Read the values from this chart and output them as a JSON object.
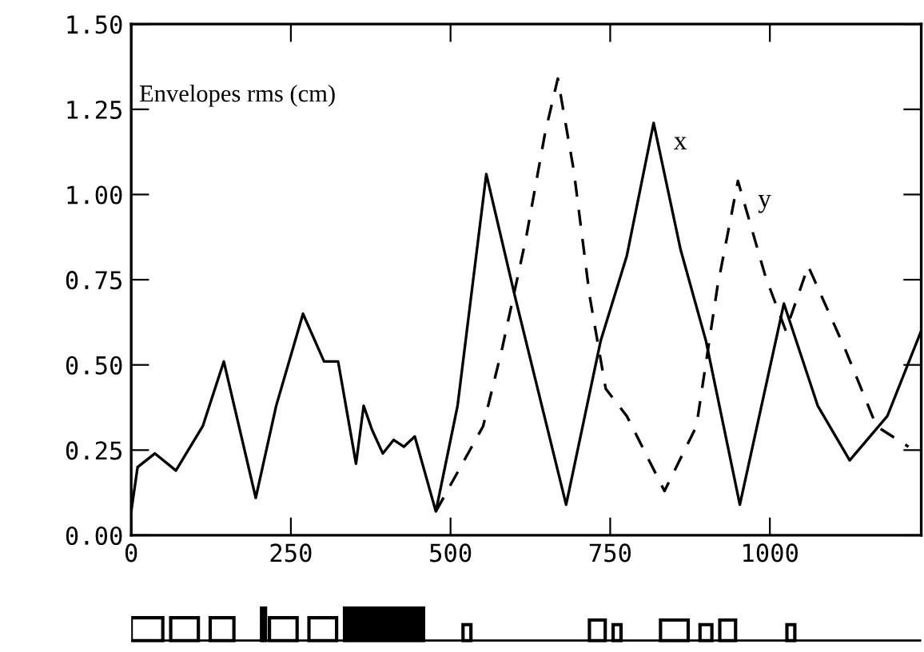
{
  "chart_data": {
    "type": "line",
    "title": "Envelopes rms (cm)",
    "series": [
      {
        "name": "x",
        "color": "#000000",
        "line_style": "solid",
        "x": [
          0,
          10,
          37,
          70,
          112,
          145,
          195,
          227,
          269,
          302,
          324,
          352,
          364,
          377,
          394,
          411,
          427,
          444,
          477,
          511,
          556,
          601,
          681,
          735,
          776,
          818,
          860,
          900,
          953,
          1022,
          1075,
          1125,
          1184,
          1237
        ],
        "values": [
          0.07,
          0.2,
          0.24,
          0.19,
          0.32,
          0.51,
          0.11,
          0.38,
          0.65,
          0.51,
          0.51,
          0.21,
          0.38,
          0.31,
          0.24,
          0.28,
          0.26,
          0.29,
          0.07,
          0.38,
          1.06,
          0.7,
          0.09,
          0.57,
          0.82,
          1.21,
          0.84,
          0.57,
          0.09,
          0.68,
          0.38,
          0.22,
          0.35,
          0.6
        ]
      },
      {
        "name": "y",
        "color": "#000000",
        "line_style": "dashed",
        "x": [
          477,
          551,
          581,
          618,
          648,
          668,
          693,
          718,
          743,
          776,
          835,
          885,
          918,
          950,
          993,
          1025,
          1060,
          1117,
          1167,
          1217
        ],
        "values": [
          0.07,
          0.32,
          0.55,
          0.87,
          1.18,
          1.34,
          1.07,
          0.7,
          0.43,
          0.35,
          0.13,
          0.32,
          0.73,
          1.04,
          0.76,
          0.6,
          0.79,
          0.55,
          0.32,
          0.26
        ]
      }
    ],
    "xlim": [
      0,
      1237
    ],
    "xticks": [
      0,
      250,
      500,
      750,
      1000
    ],
    "ylim": [
      0,
      1.5
    ],
    "yticks": [
      {
        "value": 0,
        "label": "0.00"
      },
      {
        "value": 0.25,
        "label": "0.25"
      },
      {
        "value": 0.5,
        "label": "0.50"
      },
      {
        "value": 0.75,
        "label": "0.75"
      },
      {
        "value": 1,
        "label": "1.00"
      },
      {
        "value": 1.25,
        "label": "1.25"
      },
      {
        "value": 1.5,
        "label": "1.50"
      }
    ]
  }
}
